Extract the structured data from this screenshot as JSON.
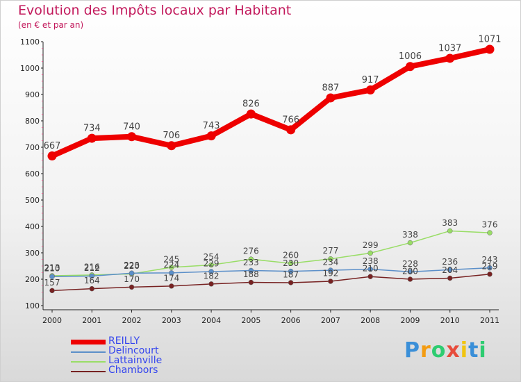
{
  "page": {
    "title": "Evolution des Impôts locaux par Habitant",
    "subtitle": "(en € et par an)"
  },
  "chart_data": {
    "type": "line",
    "title": "Evolution des Impôts locaux par Habitant",
    "subtitle": "(en € et par an)",
    "xlabel": "",
    "ylabel": "",
    "x": [
      "2000",
      "2001",
      "2002",
      "2003",
      "2004",
      "2005",
      "2006",
      "2007",
      "2008",
      "2009",
      "2010",
      "2011"
    ],
    "ylim": [
      100,
      1100
    ],
    "yticks": [
      100,
      200,
      300,
      400,
      500,
      600,
      700,
      800,
      900,
      1000,
      1100
    ],
    "ytick_labels": [
      "100",
      "200",
      "300",
      "400",
      "500",
      "600",
      "700",
      "800",
      "900",
      "1000",
      "1100"
    ],
    "grid": false,
    "legend_position": "bottom-left",
    "series": [
      {
        "name": "REILLY",
        "color": "#ee0000",
        "values": [
          667,
          734,
          740,
          706,
          743,
          826,
          766,
          887,
          917,
          1006,
          1037,
          1071
        ],
        "labels": [
          "667",
          "734",
          "740",
          "706",
          "743",
          "826",
          "766",
          "887",
          "917",
          "1006",
          "1037",
          "1071"
        ]
      },
      {
        "name": "Delincourt",
        "color": "#5b8fc9",
        "values": [
          210,
          212,
          223,
          224,
          229,
          233,
          230,
          234,
          238,
          228,
          236,
          243
        ],
        "labels": [
          "210",
          "212",
          "223",
          "224",
          "229",
          "233",
          "230",
          "234",
          "238",
          "228",
          "236",
          "243"
        ]
      },
      {
        "name": "Lattainville",
        "color": "#99dd66",
        "values": [
          213,
          216,
          220,
          245,
          254,
          276,
          260,
          277,
          299,
          338,
          383,
          376
        ],
        "labels": [
          "213",
          "216",
          "220",
          "245",
          "254",
          "276",
          "260",
          "277",
          "299",
          "338",
          "383",
          "376"
        ]
      },
      {
        "name": "Chambors",
        "color": "#772222",
        "values": [
          157,
          164,
          170,
          174,
          182,
          188,
          187,
          192,
          210,
          200,
          204,
          219
        ],
        "labels": [
          "157",
          "164",
          "170",
          "174",
          "182",
          "188",
          "187",
          "192",
          "210",
          "200",
          "204",
          "219"
        ]
      }
    ]
  },
  "branding": {
    "logo_letters": [
      "P",
      "r",
      "o",
      "x",
      "i",
      "t",
      "i"
    ],
    "logo_colors": [
      "#3a8fd8",
      "#f39c12",
      "#2ecc71",
      "#e74c3c",
      "#f1c40f",
      "#3a8fd8",
      "#2ecc71"
    ]
  }
}
